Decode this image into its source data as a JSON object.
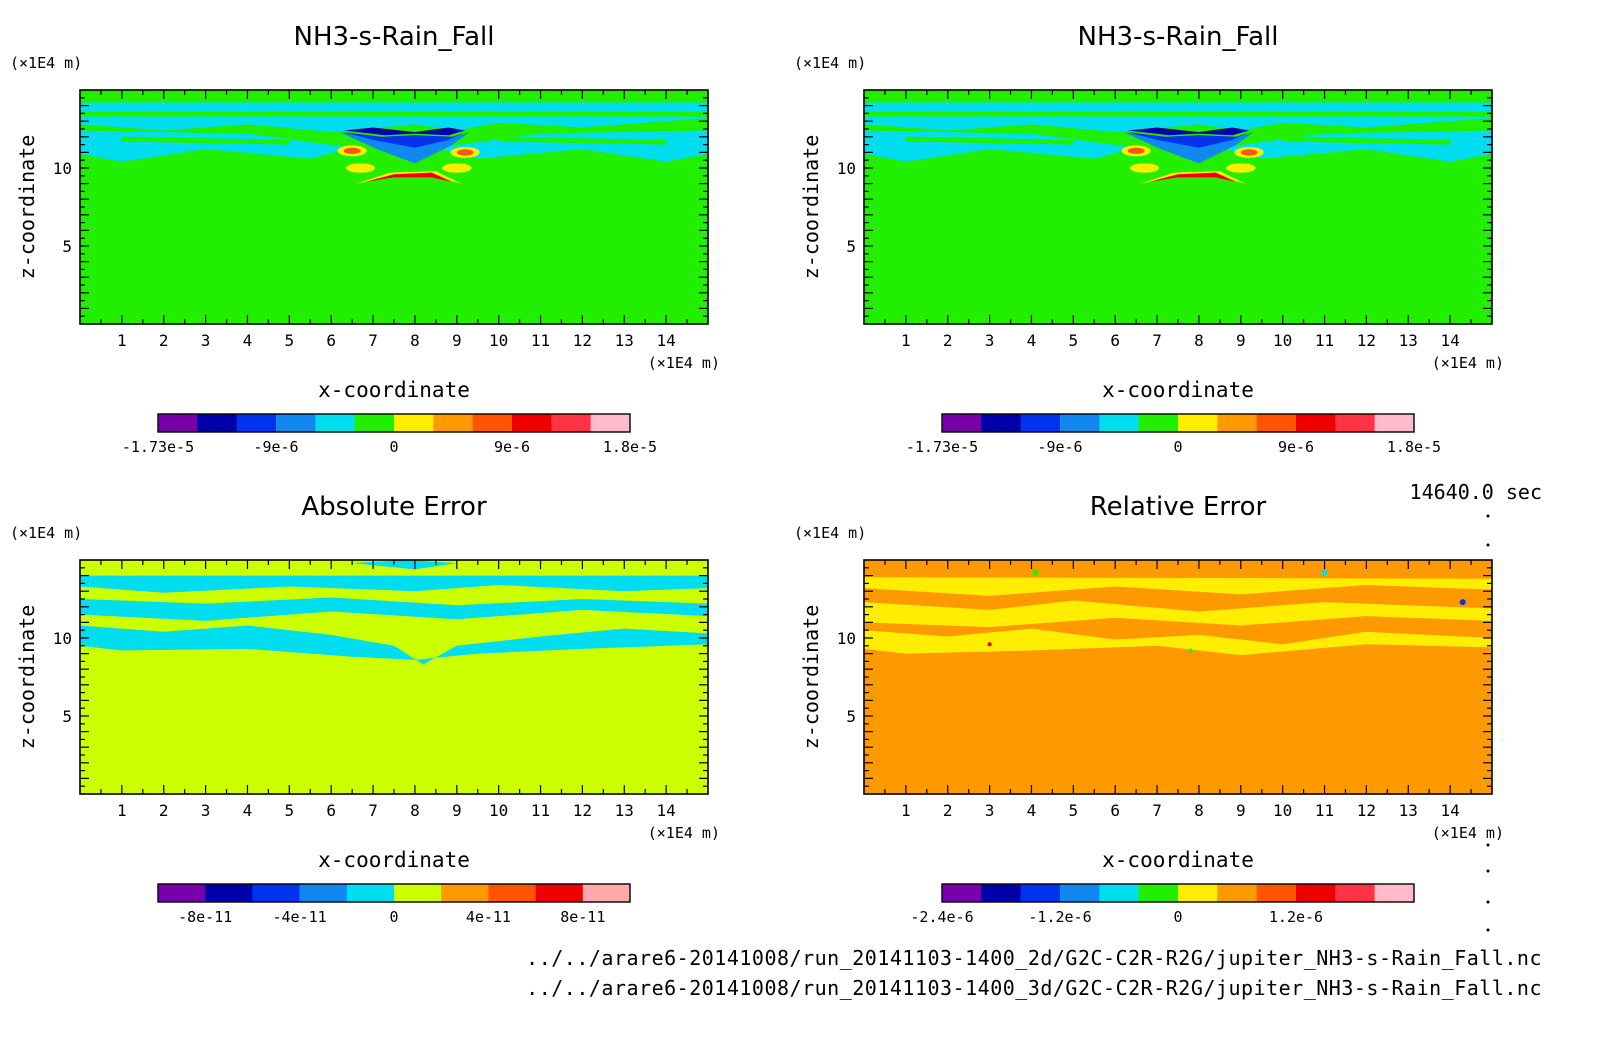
{
  "time_label": "14640.0 sec",
  "file_paths": [
    "../../arare6-20141008/run_20141103-1400_2d/G2C-C2R-R2G/jupiter_NH3-s-Rain_Fall.nc",
    "../../arare6-20141008/run_20141103-1400_3d/G2C-C2R-R2G/jupiter_NH3-s-Rain_Fall.nc"
  ],
  "chart_data": [
    {
      "type": "heatmap",
      "title": "NH3-s-Rain_Fall",
      "xlabel": "x-coordinate",
      "ylabel": "z-coordinate",
      "x_unit": "(×1E4 m)",
      "y_unit": "(×1E4 m)",
      "xlim": [
        0,
        15
      ],
      "ylim": [
        0,
        15
      ],
      "x_ticks": [
        1,
        2,
        3,
        4,
        5,
        6,
        7,
        8,
        9,
        10,
        11,
        12,
        13,
        14
      ],
      "y_ticks": [
        5,
        10
      ],
      "background": "#22ee00",
      "colorbar": {
        "colors": [
          "#7700aa",
          "#0000aa",
          "#0033ee",
          "#1188ee",
          "#00ddee",
          "#22ee00",
          "#ffee00",
          "#ff9900",
          "#ff5500",
          "#ee0000",
          "#ff3344",
          "#ffbbcc"
        ],
        "labels": [
          "-1.73e-5",
          "-9e-6",
          "0",
          "9e-6",
          "1.8e-5"
        ],
        "label_bins": [
          0,
          3,
          6,
          9,
          12
        ]
      }
    },
    {
      "type": "heatmap",
      "title": "NH3-s-Rain_Fall",
      "xlabel": "x-coordinate",
      "ylabel": "z-coordinate",
      "x_unit": "(×1E4 m)",
      "y_unit": "(×1E4 m)",
      "xlim": [
        0,
        15
      ],
      "ylim": [
        0,
        15
      ],
      "x_ticks": [
        1,
        2,
        3,
        4,
        5,
        6,
        7,
        8,
        9,
        10,
        11,
        12,
        13,
        14
      ],
      "y_ticks": [
        5,
        10
      ],
      "background": "#22ee00",
      "colorbar": {
        "colors": [
          "#7700aa",
          "#0000aa",
          "#0033ee",
          "#1188ee",
          "#00ddee",
          "#22ee00",
          "#ffee00",
          "#ff9900",
          "#ff5500",
          "#ee0000",
          "#ff3344",
          "#ffbbcc"
        ],
        "labels": [
          "-1.73e-5",
          "-9e-6",
          "0",
          "9e-6",
          "1.8e-5"
        ],
        "label_bins": [
          0,
          3,
          6,
          9,
          12
        ]
      }
    },
    {
      "type": "heatmap",
      "title": "Absolute Error",
      "xlabel": "x-coordinate",
      "ylabel": "z-coordinate",
      "x_unit": "(×1E4 m)",
      "y_unit": "(×1E4 m)",
      "xlim": [
        0,
        15
      ],
      "ylim": [
        0,
        15
      ],
      "x_ticks": [
        1,
        2,
        3,
        4,
        5,
        6,
        7,
        8,
        9,
        10,
        11,
        12,
        13,
        14
      ],
      "y_ticks": [
        5,
        10
      ],
      "background": "#ccff00",
      "colorbar": {
        "colors": [
          "#7700aa",
          "#0000aa",
          "#0033ee",
          "#1188ee",
          "#00ddee",
          "#ccff00",
          "#ff9900",
          "#ff5500",
          "#ee0000",
          "#ffaaaa"
        ],
        "labels": [
          "-8e-11",
          "-4e-11",
          "0",
          "4e-11",
          "8e-11"
        ],
        "label_bins": [
          1,
          3,
          5,
          7,
          9
        ]
      }
    },
    {
      "type": "heatmap",
      "title": "Relative Error",
      "xlabel": "x-coordinate",
      "ylabel": "z-coordinate",
      "x_unit": "(×1E4 m)",
      "y_unit": "(×1E4 m)",
      "xlim": [
        0,
        15
      ],
      "ylim": [
        0,
        15
      ],
      "x_ticks": [
        1,
        2,
        3,
        4,
        5,
        6,
        7,
        8,
        9,
        10,
        11,
        12,
        13,
        14
      ],
      "y_ticks": [
        5,
        10
      ],
      "background": "#ff9900",
      "colorbar": {
        "colors": [
          "#7700aa",
          "#0000aa",
          "#0033ee",
          "#1188ee",
          "#00ddee",
          "#22ee00",
          "#ffee00",
          "#ff9900",
          "#ff5500",
          "#ee0000",
          "#ff3344",
          "#ffbbcc"
        ],
        "labels": [
          "-2.4e-6",
          "-1.2e-6",
          "0",
          "1.2e-6"
        ],
        "label_bins": [
          0,
          3,
          6,
          9
        ]
      }
    }
  ]
}
